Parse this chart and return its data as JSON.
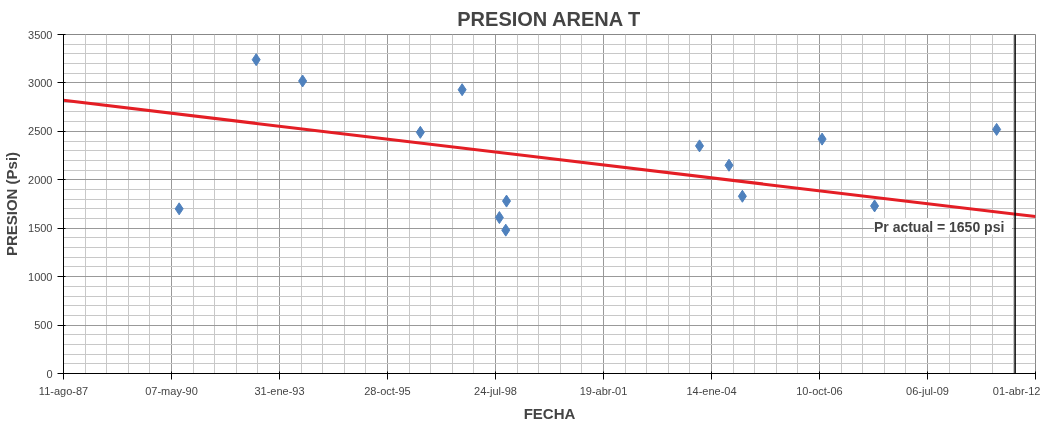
{
  "chart_data": {
    "type": "scatter",
    "title": "PRESION ARENA T",
    "xlabel": "FECHA",
    "ylabel": "PRESION (Psi)",
    "x": [
      "1990-07-17",
      "1992-06-29",
      "1993-09-02",
      "1996-08-27",
      "1997-09-18",
      "1998-08-29",
      "1998-11-03",
      "1998-10-27",
      "2003-09-25",
      "2004-06-24",
      "2004-10-26",
      "2006-11-03",
      "2008-03-03",
      "2011-04-07"
    ],
    "series": [
      {
        "color": "#4f81bd",
        "marker": "diamond",
        "values": [
          1700,
          3240,
          3020,
          2490,
          2930,
          1610,
          1780,
          1480,
          2350,
          2150,
          1830,
          2420,
          1730,
          2520
        ]
      },
      {
        "type": "line",
        "color": "#e41e25",
        "marker": "none",
        "x": [
          "1987-08-11",
          "2012-04-01"
        ],
        "values": [
          2820,
          1620
        ]
      }
    ],
    "xlim": [
      "1987-08-11",
      "2012-04-01"
    ],
    "xticks": [
      {
        "value": "1987-08-11",
        "label": "11-ago-87"
      },
      {
        "value": "1990-05-07",
        "label": "07-may-90"
      },
      {
        "value": "1993-01-31",
        "label": "31-ene-93"
      },
      {
        "value": "1995-10-28",
        "label": "28-oct-95"
      },
      {
        "value": "1998-07-24",
        "label": "24-jul-98"
      },
      {
        "value": "2001-04-19",
        "label": "19-abr-01"
      },
      {
        "value": "2004-01-14",
        "label": "14-ene-04"
      },
      {
        "value": "2006-10-10",
        "label": "10-oct-06"
      },
      {
        "value": "2009-07-06",
        "label": "06-jul-09"
      },
      {
        "value": "2012-04-01",
        "label": "01-abr-12"
      }
    ],
    "ylim": [
      0,
      3500
    ],
    "yticks": [
      0,
      500,
      1000,
      1500,
      2000,
      2500,
      3000,
      3500
    ],
    "ref_lines": [
      {
        "axis": "x",
        "value": "2011-09-25",
        "label": "Pr   actual = 1650 psi",
        "color": "#000000"
      }
    ],
    "grid": true
  }
}
